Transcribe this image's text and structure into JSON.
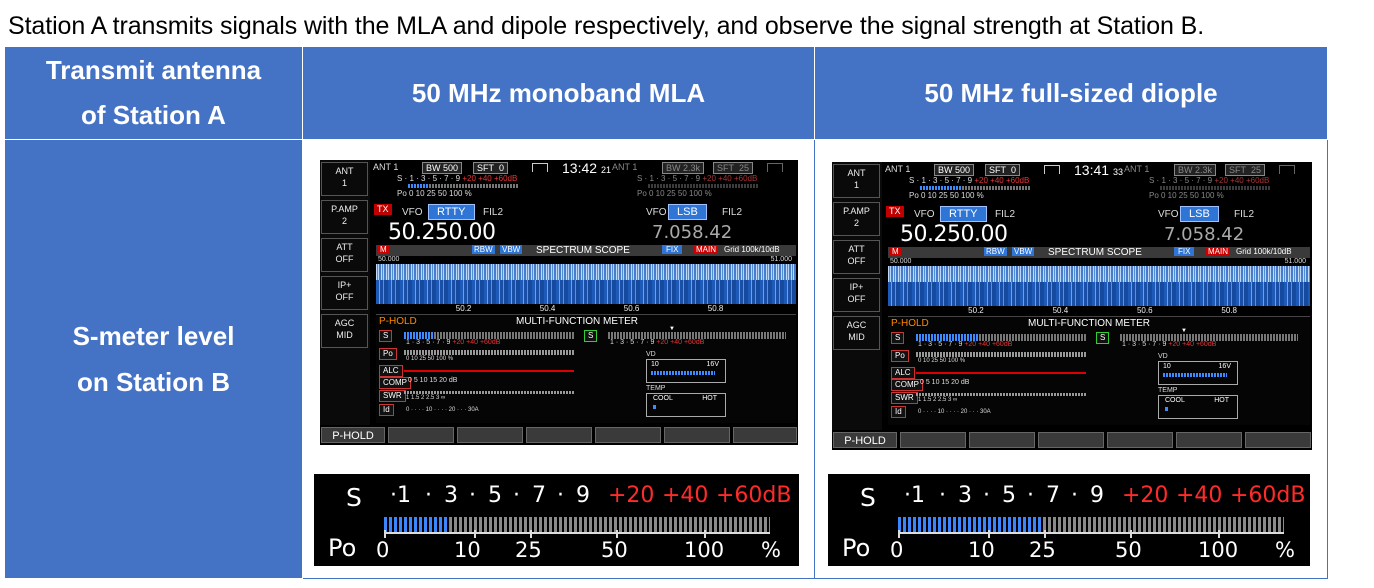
{
  "caption": "Station A transmits signals with the MLA and dipole respectively, and observe the signal strength at Station B.",
  "table": {
    "header_left_line1": "Transmit antenna",
    "header_left_line2": "of Station A",
    "header_mla": "50 MHz monoband MLA",
    "header_dipole": "50 MHz full-sized diople",
    "row_label_line1": "S-meter level",
    "row_label_line2": "on Station B"
  },
  "colors": {
    "header_bg": "#4472c4",
    "header_text": "#ffffff",
    "scale_red": "#ff2a2a",
    "bar_blue": "#3a86ff"
  },
  "radio_left": {
    "ant": "ANT",
    "ant_v": "1",
    "pamp": "P.AMP",
    "pamp_v": "2",
    "att": "ATT",
    "att_v": "OFF",
    "ip": "IP+",
    "ip_v": "OFF",
    "agc": "AGC",
    "agc_v": "MID"
  },
  "radio_top": {
    "ant1": "ANT 1",
    "bw": "BW 500",
    "sft": "SFT",
    "sft_v": "0",
    "ant1b": "ANT 1",
    "bw2": "BW 2.3k",
    "sft2": "SFT",
    "sft2_v": "25",
    "s_scale": "S  · 1 · 3 · 5 · 7 · 9",
    "s_red": "+20  +40 +60dB",
    "po_scale": "Po 0     10   25   50    100  %",
    "tx": "TX",
    "vfo": "VFO",
    "mode1": "RTTY",
    "fil": "FIL2",
    "vfo2": "VFO",
    "mode2": "LSB",
    "fil2": "FIL2",
    "freq_main": "50.250.00",
    "freq_sub": "7.058.42"
  },
  "radio_scope": {
    "m": "M",
    "rbw": "RBW",
    "vbw": "VBW",
    "title": "SPECTRUM SCOPE",
    "fix": "FIX",
    "main": "MAIN",
    "grid": "Grid 100k/10dB",
    "left_f": "50.000",
    "right_f": "51.000",
    "ticks": [
      "50.2",
      "50.4",
      "50.6",
      "50.8"
    ]
  },
  "radio_meter": {
    "phold": "P-HOLD",
    "title": "MULTI-FUNCTION METER",
    "s": "S",
    "po": "Po",
    "alc": "ALC",
    "comp": "COMP",
    "swr": "SWR",
    "id": "Id",
    "s_scale": "1 · 3 · 5 · 7 · 9",
    "s_red": "+20  +40  +60dB",
    "po_scale": "0        10      25      50       100    %",
    "comp_scale": "0     5      10      15      20      dB",
    "swr_scale": "1    1.5    2    2.5    3           ∞",
    "id_scale": "0 ·  ·  ·  · 10 ·  ·  ·  · 20 ·  ·  · 30A",
    "vd": "VD",
    "vd_10": "10",
    "vd_16": "16V",
    "temp": "TEMP",
    "cool": "COOL",
    "hot": "HOT",
    "softkey": "P-HOLD"
  },
  "mla": {
    "time": "13:42",
    "time_s": "21",
    "s_level_fraction": 0.17
  },
  "dipole": {
    "time": "13:41",
    "time_s": "33",
    "s_level_fraction": 0.37
  },
  "zoom": {
    "s": "S",
    "s_ticks": [
      "·1",
      "·",
      "3",
      "·",
      "5",
      "·",
      "7",
      "·",
      "9"
    ],
    "red_ticks": [
      "+20",
      "+40",
      "+60dB"
    ],
    "po": "Po",
    "po_ticks": [
      "0",
      "10",
      "25",
      "50",
      "100",
      "%"
    ]
  }
}
